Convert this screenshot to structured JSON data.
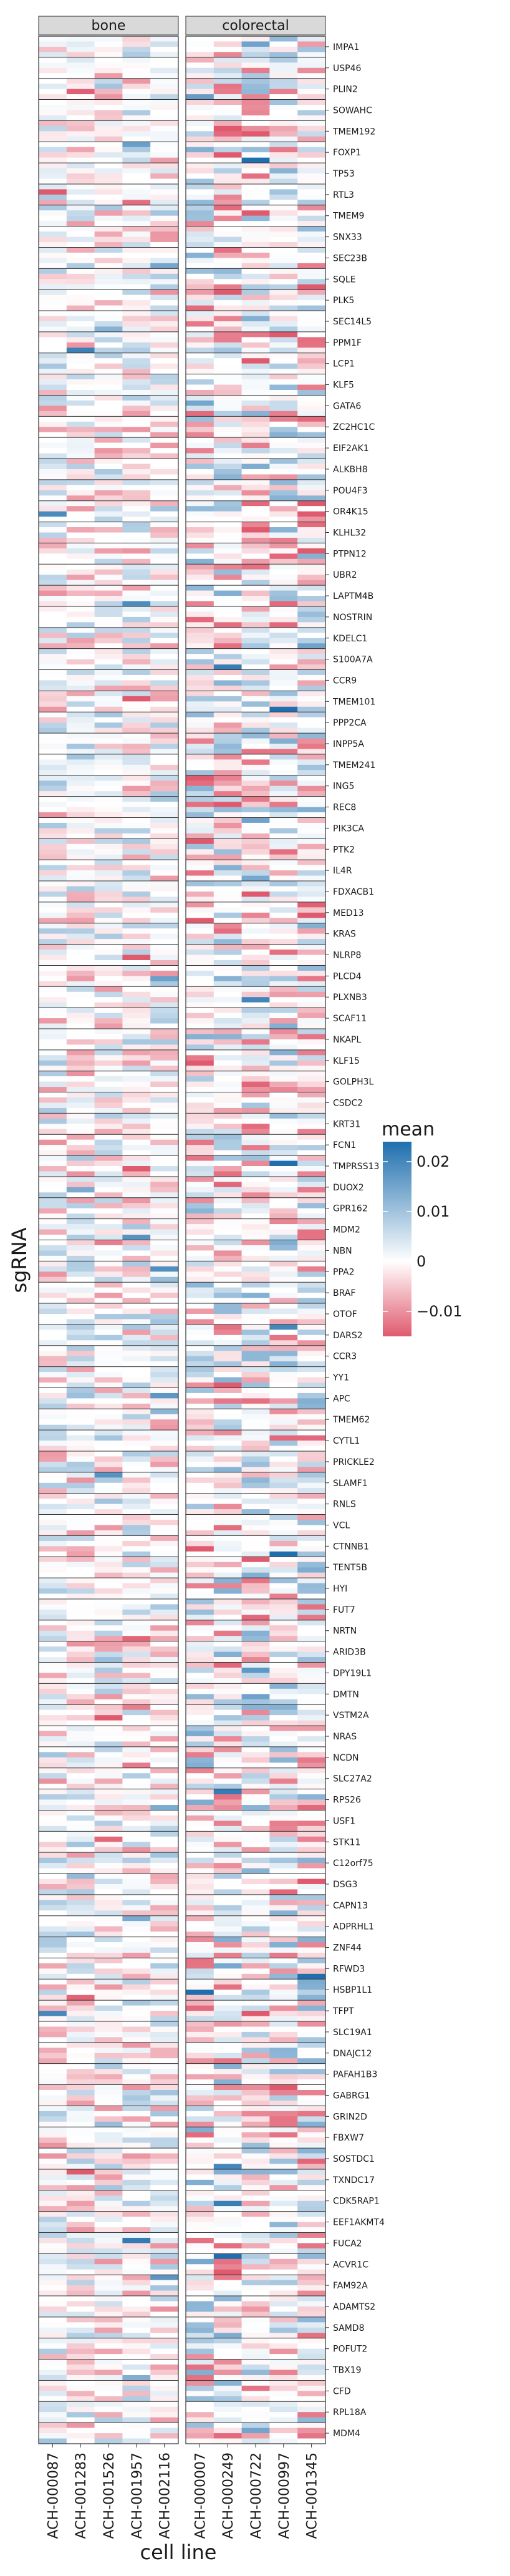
{
  "chart_data": {
    "type": "heatmap",
    "xlabel": "cell line",
    "ylabel": "sgRNA",
    "facets": [
      {
        "name": "bone",
        "cell_lines": [
          "ACH-000087",
          "ACH-001283",
          "ACH-001526",
          "ACH-001957",
          "ACH-002116"
        ]
      },
      {
        "name": "colorectal",
        "cell_lines": [
          "ACH-000007",
          "ACH-000249",
          "ACH-000722",
          "ACH-000997",
          "ACH-001345"
        ]
      }
    ],
    "genes": [
      "IMPA1",
      "USP46",
      "PLIN2",
      "SOWAHC",
      "TMEM192",
      "FOXP1",
      "TP53",
      "RTL3",
      "TMEM9",
      "SNX33",
      "SEC23B",
      "SQLE",
      "PLK5",
      "SEC14L5",
      "PPM1F",
      "LCP1",
      "KLF5",
      "GATA6",
      "ZC2HC1C",
      "EIF2AK1",
      "ALKBH8",
      "POU4F3",
      "OR4K15",
      "KLHL32",
      "PTPN12",
      "UBR2",
      "LAPTM4B",
      "NOSTRIN",
      "KDELC1",
      "S100A7A",
      "CCR9",
      "TMEM101",
      "PPP2CA",
      "INPP5A",
      "TMEM241",
      "ING5",
      "REC8",
      "PIK3CA",
      "PTK2",
      "IL4R",
      "FDXACB1",
      "MED13",
      "KRAS",
      "NLRP8",
      "PLCD4",
      "PLXNB3",
      "SCAF11",
      "NKAPL",
      "KLF15",
      "GOLPH3L",
      "CSDC2",
      "KRT31",
      "FCN1",
      "TMPRSS13",
      "DUOX2",
      "GPR162",
      "MDM2",
      "NBN",
      "PPA2",
      "BRAF",
      "OTOF",
      "DARS2",
      "CCR3",
      "YY1",
      "APC",
      "TMEM62",
      "CYTL1",
      "PRICKLE2",
      "SLAMF1",
      "RNLS",
      "VCL",
      "CTNNB1",
      "TENT5B",
      "HYI",
      "FUT7",
      "NRTN",
      "ARID3B",
      "DPY19L1",
      "DMTN",
      "VSTM2A",
      "NRAS",
      "NCDN",
      "SLC27A2",
      "RPS26",
      "USF1",
      "STK11",
      "C12orf75",
      "DSG3",
      "CAPN13",
      "ADPRHL1",
      "ZNF44",
      "RFWD3",
      "HSBP1L1",
      "TFPT",
      "SLC19A1",
      "DNAJC12",
      "PAFAH1B3",
      "GABRG1",
      "GRIN2D",
      "FBXW7",
      "SOSTDC1",
      "TXNDC17",
      "CDK5RAP1",
      "EEF1AKMT4",
      "FUCA2",
      "ACVR1C",
      "FAM92A",
      "ADAMTS2",
      "SAMD8",
      "POFUT2",
      "TBX19",
      "CFD",
      "RPL18A",
      "MDM4"
    ],
    "sgrnas_per_gene": 4,
    "value_range": [
      -0.015,
      0.024
    ],
    "colors": {
      "low": "#e05a6e",
      "mid": "#ffffff",
      "high": "#1f6fae"
    },
    "legend": {
      "title": "mean",
      "ticks": [
        0.02,
        0.01,
        0,
        -0.01
      ],
      "tick_labels": [
        "0.02",
        "0.01",
        "0",
        "−0.01"
      ],
      "position": "right"
    },
    "values_note": ""
  }
}
